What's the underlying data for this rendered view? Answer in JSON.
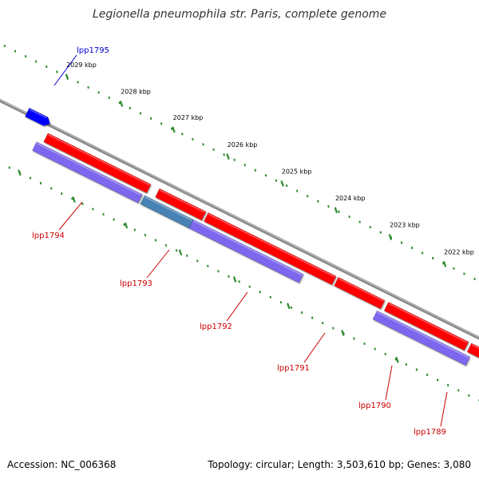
{
  "title": "Legionella pneumophila str. Paris, complete genome",
  "footer": {
    "accession": "Accession: NC_006368",
    "summary": "Topology: circular; Length: 3,503,610 bp; Genes: 3,080"
  },
  "colors": {
    "backbone": "#8a8a8a",
    "forward_gene": "#ff0000",
    "reverse_gene": "#7b68ee",
    "forward_other": "#0000ff",
    "reverse_highlight": "#4682b4",
    "tick": "#2e8b2e",
    "label_forward": "#0000cc",
    "label_reverse": "#cc0000"
  },
  "ticks": [
    {
      "label": "2029 kbp"
    },
    {
      "label": "2028 kbp"
    },
    {
      "label": "2027 kbp"
    },
    {
      "label": "2026 kbp"
    },
    {
      "label": "2025 kbp"
    },
    {
      "label": "2024 kbp"
    },
    {
      "label": "2023 kbp"
    },
    {
      "label": "2022 kbp"
    }
  ],
  "genes": [
    {
      "label": "lpp1795",
      "strand": "forward"
    },
    {
      "label": "lpp1794",
      "strand": "reverse"
    },
    {
      "label": "lpp1793",
      "strand": "reverse"
    },
    {
      "label": "lpp1792",
      "strand": "reverse"
    },
    {
      "label": "lpp1791",
      "strand": "reverse"
    },
    {
      "label": "lpp1790",
      "strand": "reverse"
    },
    {
      "label": "lpp1789",
      "strand": "reverse"
    }
  ]
}
